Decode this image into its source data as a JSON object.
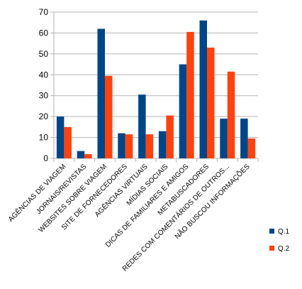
{
  "chart_data": {
    "type": "bar",
    "title": "",
    "xlabel": "",
    "ylabel": "",
    "ylim": [
      0,
      70
    ],
    "yticks": [
      0,
      10,
      20,
      30,
      40,
      50,
      60,
      70
    ],
    "grid": true,
    "legend_position": "bottom-right",
    "categories": [
      "AGÊNCIAS DE VIAGEM",
      "JORNAIS/REVISTAS",
      "WEBSITES SOBRE VIAGEM",
      "SITE DE FORNECEDORES",
      "AGÊNCIAS VIRTUAIS",
      "MÍDIAS SOCIAIS",
      "DICAS DE FAMILIARES E AMIGOS",
      "METABUSCADORES",
      "REDES COM COMENTÁRIOS DE OUTROS...",
      "NÃO BUSCOU INFORMAÇÕES"
    ],
    "series": [
      {
        "name": "Q.1",
        "color": "#004586",
        "values": [
          20,
          3.5,
          62,
          12,
          30.5,
          13,
          45,
          66,
          19,
          19
        ]
      },
      {
        "name": "Q.2",
        "color": "#ff420e",
        "values": [
          15,
          2,
          39.5,
          11.5,
          11.5,
          20.5,
          60.5,
          53,
          41.5,
          9.5
        ]
      }
    ]
  }
}
